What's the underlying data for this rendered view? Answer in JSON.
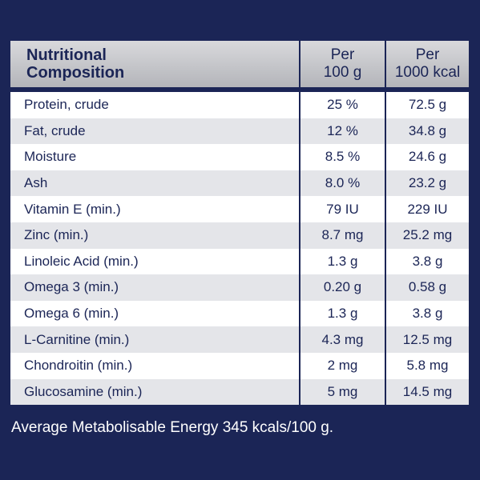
{
  "header": {
    "name_line1": "Nutritional",
    "name_line2": "Composition",
    "col2_line1": "Per",
    "col2_line2": "100 g",
    "col3_line1": "Per",
    "col3_line2": "1000 kcal"
  },
  "rows": [
    {
      "name": "Protein, crude",
      "per100g": "25 %",
      "per1000kcal": "72.5 g"
    },
    {
      "name": "Fat, crude",
      "per100g": "12 %",
      "per1000kcal": "34.8 g"
    },
    {
      "name": "Moisture",
      "per100g": "8.5 %",
      "per1000kcal": "24.6 g"
    },
    {
      "name": "Ash",
      "per100g": "8.0 %",
      "per1000kcal": "23.2 g"
    },
    {
      "name": "Vitamin E (min.)",
      "per100g": "79 IU",
      "per1000kcal": "229 IU"
    },
    {
      "name": "Zinc (min.)",
      "per100g": "8.7 mg",
      "per1000kcal": "25.2 mg"
    },
    {
      "name": "Linoleic Acid (min.)",
      "per100g": "1.3 g",
      "per1000kcal": "3.8 g"
    },
    {
      "name": "Omega 3 (min.)",
      "per100g": "0.20 g",
      "per1000kcal": "0.58 g"
    },
    {
      "name": "Omega 6 (min.)",
      "per100g": "1.3 g",
      "per1000kcal": "3.8 g"
    },
    {
      "name": "L-Carnitine (min.)",
      "per100g": "4.3 mg",
      "per1000kcal": "12.5 mg"
    },
    {
      "name": "Chondroitin (min.)",
      "per100g": "2 mg",
      "per1000kcal": "5.8 mg"
    },
    {
      "name": "Glucosamine (min.)",
      "per100g": "5 mg",
      "per1000kcal": "14.5 mg"
    }
  ],
  "footnote": "Average Metabolisable Energy 345 kcals/100 g.",
  "colors": {
    "background": "#1b2556",
    "header": "#c4c5c9",
    "row_light": "#ffffff",
    "row_shade": "#e4e5e9"
  }
}
